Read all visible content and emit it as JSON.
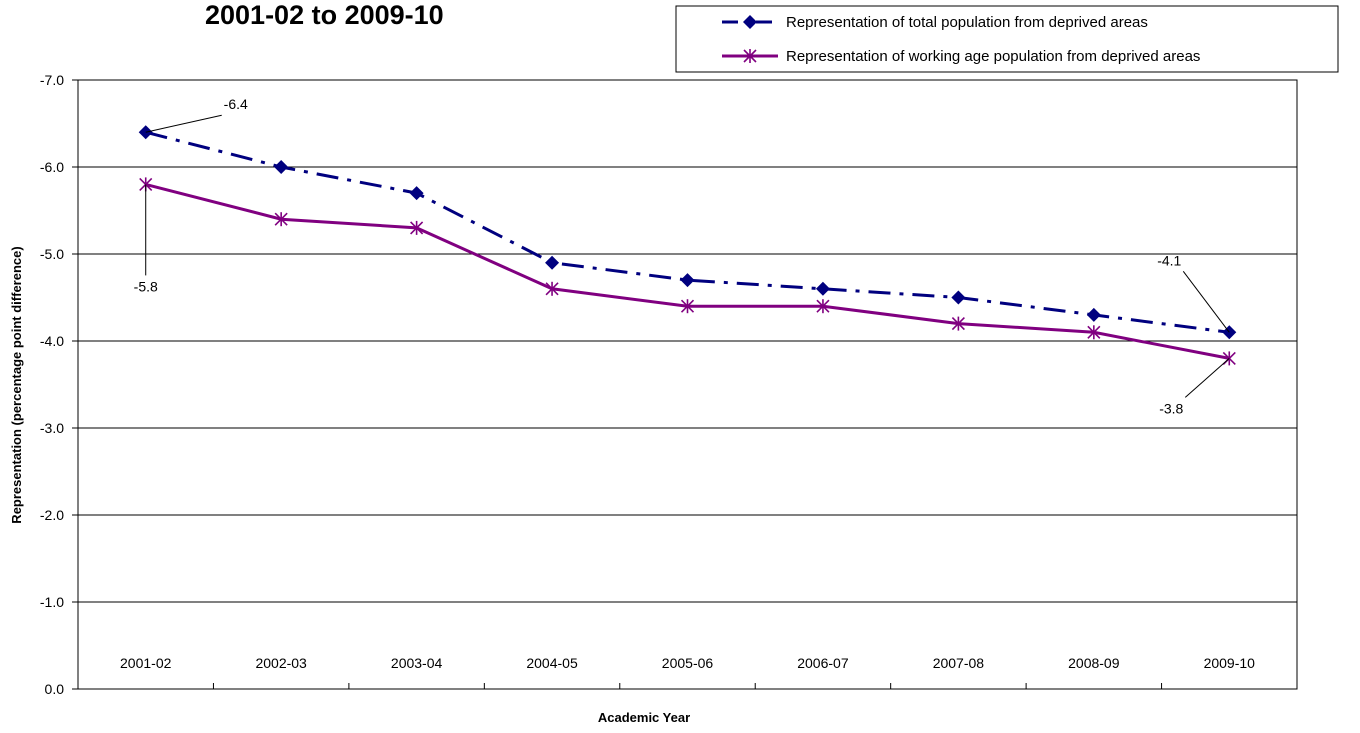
{
  "chart_data": {
    "type": "line",
    "title": "2001-02 to 2009-10",
    "xlabel": "Academic Year",
    "ylabel": "Representation (percentage point difference)",
    "ylim": [
      0,
      -7
    ],
    "y_axis_reversed": true,
    "grid": "horizontal",
    "legend_position": "top-right",
    "categories": [
      "2001-02",
      "2002-03",
      "2003-04",
      "2004-05",
      "2005-06",
      "2006-07",
      "2007-08",
      "2008-09",
      "2009-10"
    ],
    "y_ticks": [
      "-7.0",
      "-6.0",
      "-5.0",
      "-4.0",
      "-3.0",
      "-2.0",
      "-1.0",
      "0.0"
    ],
    "series": [
      {
        "name": "Representation of total population from deprived areas",
        "values": [
          -6.4,
          -6.0,
          -5.7,
          -4.9,
          -4.7,
          -4.6,
          -4.5,
          -4.3,
          -4.1
        ],
        "color": "#00007f",
        "line_style": "dash-dot",
        "marker": "diamond"
      },
      {
        "name": "Representation of working age population from deprived areas",
        "values": [
          -5.8,
          -5.4,
          -5.3,
          -4.6,
          -4.4,
          -4.4,
          -4.2,
          -4.1,
          -3.8
        ],
        "color": "#800080",
        "line_style": "solid",
        "marker": "asterisk"
      }
    ],
    "data_labels": [
      {
        "series": 0,
        "index": 0,
        "text": "-6.4"
      },
      {
        "series": 1,
        "index": 0,
        "text": "-5.8"
      },
      {
        "series": 0,
        "index": 8,
        "text": "-4.1"
      },
      {
        "series": 1,
        "index": 8,
        "text": "-3.8"
      }
    ]
  }
}
